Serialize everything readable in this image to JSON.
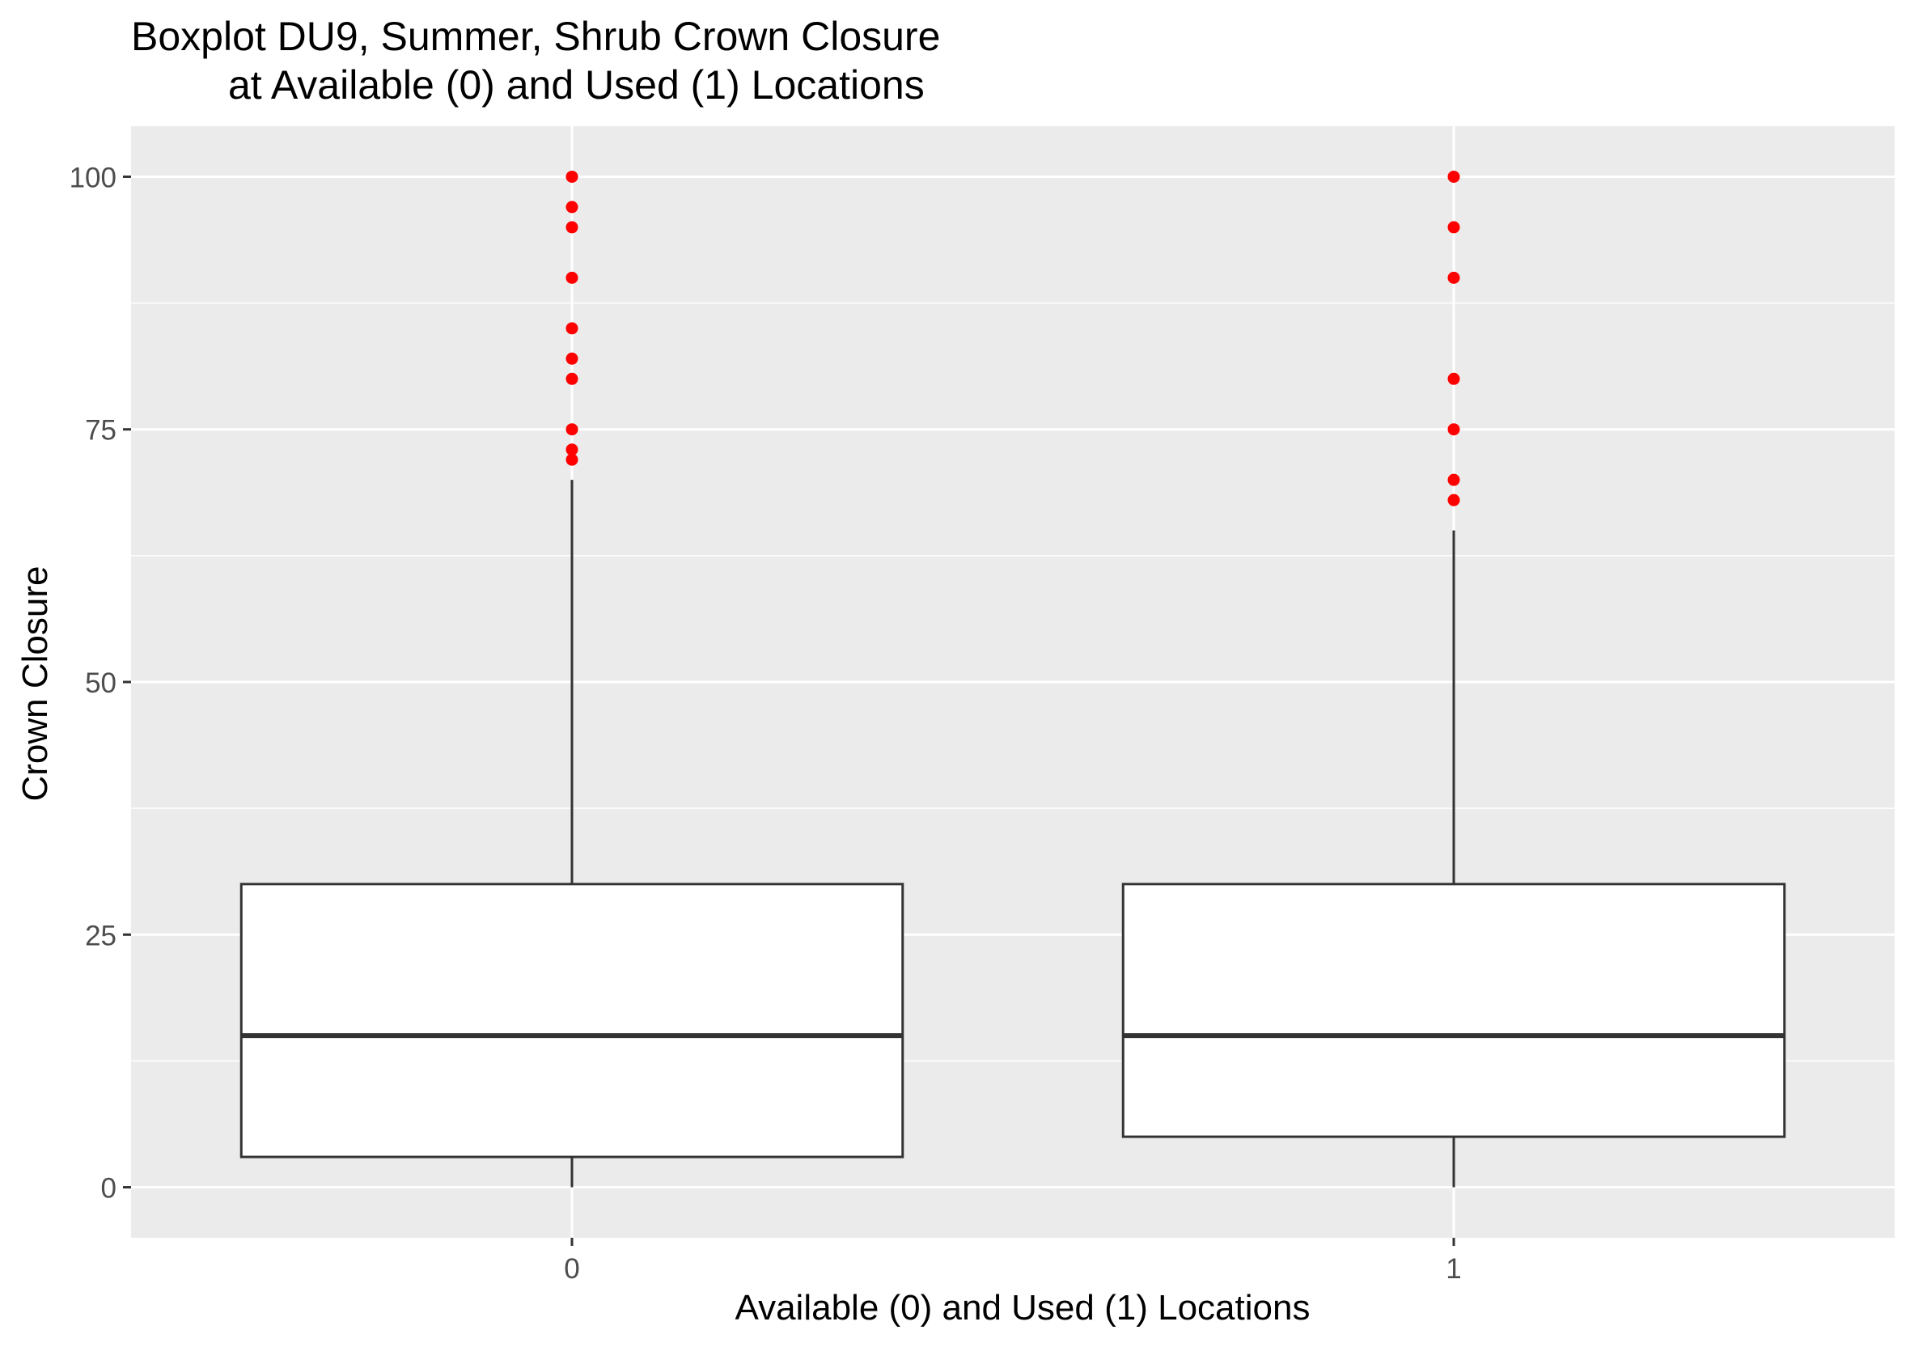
{
  "chart_data": {
    "type": "boxplot",
    "title": "Boxplot DU9, Summer, Shrub Crown Closure",
    "subtitle": "at Available (0) and Used (1) Locations",
    "xlabel": "Available (0) and Used (1) Locations",
    "ylabel": "Crown Closure",
    "categories": [
      "0",
      "1"
    ],
    "ylim": [
      -5,
      105
    ],
    "yticks": [
      0,
      25,
      50,
      75,
      100
    ],
    "ytick_labels": [
      "0",
      "25",
      "50",
      "75",
      "100"
    ],
    "grid": true,
    "background_color": "#EBEBEB",
    "outlier_color": "#FF0000",
    "box_fill": "#FFFFFF",
    "box_stroke": "#333333",
    "boxes": [
      {
        "category": "0",
        "whisker_low": 0,
        "q1": 3,
        "median": 15,
        "q3": 30,
        "whisker_high": 70,
        "outliers": [
          72,
          73,
          75,
          80,
          82,
          85,
          90,
          95,
          97,
          100
        ]
      },
      {
        "category": "1",
        "whisker_low": 0,
        "q1": 5,
        "median": 15,
        "q3": 30,
        "whisker_high": 65,
        "outliers": [
          68,
          70,
          75,
          80,
          90,
          95,
          100
        ]
      }
    ]
  }
}
